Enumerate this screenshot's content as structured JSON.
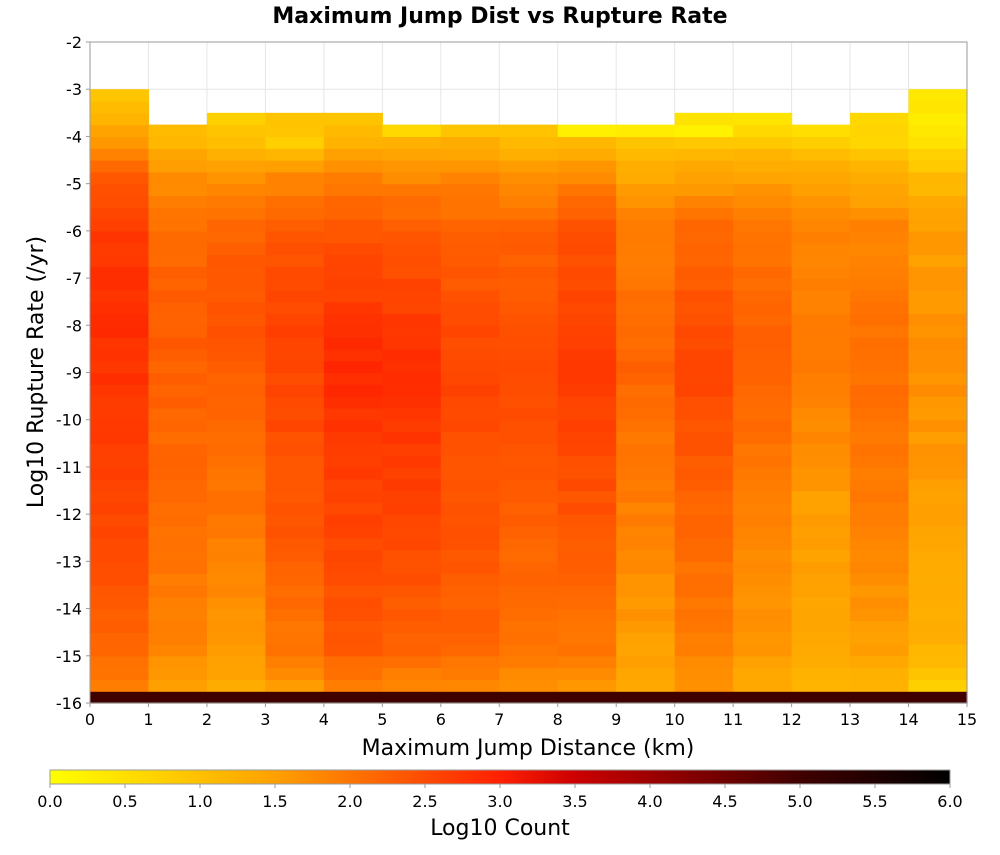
{
  "chart_data": {
    "type": "heatmap",
    "title": "Maximum Jump Dist vs Rupture Rate",
    "xlabel": "Maximum Jump Distance (km)",
    "ylabel": "Log10 Rupture Rate (/yr)",
    "xlim": [
      0,
      15
    ],
    "ylim": [
      -16,
      -2
    ],
    "x_ticks": [
      "0",
      "1",
      "2",
      "3",
      "4",
      "5",
      "6",
      "7",
      "8",
      "9",
      "10",
      "11",
      "12",
      "13",
      "14",
      "15"
    ],
    "y_ticks": [
      "-2",
      "-3",
      "-4",
      "-5",
      "-6",
      "-7",
      "-8",
      "-9",
      "-10",
      "-11",
      "-12",
      "-13",
      "-14",
      "-15",
      "-16"
    ],
    "grid": true,
    "x_bin_width": 1,
    "y_bin_height": 0.25,
    "y_bins_bottom": -16,
    "colorbar": {
      "label": "Log10 Count",
      "range": [
        0,
        6
      ],
      "ticks": [
        "0.0",
        "0.5",
        "1.0",
        "1.5",
        "2.0",
        "2.5",
        "3.0",
        "3.5",
        "4.0",
        "4.5",
        "5.0",
        "5.5",
        "6.0"
      ],
      "colors": [
        "#ffff00",
        "#ffa000",
        "#ff2000",
        "#cc0000",
        "#400000",
        "#000000"
      ],
      "color_stops": [
        0,
        1.5,
        3.0,
        3.5,
        5.0,
        6.0
      ]
    },
    "column_top_rate": [
      -3.0,
      -3.75,
      -3.5,
      -3.5,
      -3.5,
      -3.75,
      -3.75,
      -3.75,
      -3.75,
      -3.75,
      -3.5,
      -3.5,
      -3.75,
      -3.5,
      -3.0
    ],
    "column_profiles": [
      [
        [
          -16,
          5.0
        ],
        [
          -15.75,
          1.9
        ],
        [
          -15,
          2.2
        ],
        [
          -12,
          2.6
        ],
        [
          -8,
          2.85
        ],
        [
          -6,
          2.7
        ],
        [
          -5,
          2.3
        ],
        [
          -4.25,
          1.6
        ],
        [
          -3.75,
          1.2
        ],
        [
          -3.25,
          1.0
        ],
        [
          -3.0,
          1.0
        ]
      ],
      [
        [
          -16,
          5.0
        ],
        [
          -15.75,
          1.5
        ],
        [
          -15,
          1.8
        ],
        [
          -12,
          2.1
        ],
        [
          -8,
          2.3
        ],
        [
          -6,
          2.1
        ],
        [
          -5,
          1.7
        ],
        [
          -4.25,
          1.2
        ],
        [
          -4.0,
          1.0
        ],
        [
          -3.75,
          1.0
        ]
      ],
      [
        [
          -16,
          5.0
        ],
        [
          -15.75,
          1.3
        ],
        [
          -15,
          1.6
        ],
        [
          -12,
          2.0
        ],
        [
          -8,
          2.4
        ],
        [
          -6,
          2.2
        ],
        [
          -5,
          1.7
        ],
        [
          -4.25,
          1.1
        ],
        [
          -3.75,
          0.7
        ],
        [
          -3.5,
          0.7
        ]
      ],
      [
        [
          -16,
          5.0
        ],
        [
          -15.75,
          1.6
        ],
        [
          -15,
          2.0
        ],
        [
          -12,
          2.4
        ],
        [
          -8,
          2.6
        ],
        [
          -6,
          2.3
        ],
        [
          -5,
          1.8
        ],
        [
          -4.25,
          0.8
        ],
        [
          -3.75,
          0.9
        ],
        [
          -3.5,
          0.9
        ]
      ],
      [
        [
          -16,
          5.0
        ],
        [
          -15.75,
          1.9
        ],
        [
          -15,
          2.3
        ],
        [
          -12,
          2.6
        ],
        [
          -9,
          2.9
        ],
        [
          -6,
          2.4
        ],
        [
          -5,
          1.9
        ],
        [
          -4.25,
          1.2
        ],
        [
          -3.75,
          1.0
        ],
        [
          -3.5,
          1.0
        ]
      ],
      [
        [
          -16,
          5.0
        ],
        [
          -15.75,
          1.8
        ],
        [
          -15,
          2.2
        ],
        [
          -12,
          2.6
        ],
        [
          -9,
          2.85
        ],
        [
          -6,
          2.3
        ],
        [
          -5,
          1.8
        ],
        [
          -4.25,
          1.3
        ],
        [
          -4.0,
          0.6
        ],
        [
          -3.75,
          0.6
        ]
      ],
      [
        [
          -16,
          5.0
        ],
        [
          -15.75,
          1.8
        ],
        [
          -15,
          2.2
        ],
        [
          -12,
          2.4
        ],
        [
          -9,
          2.6
        ],
        [
          -6,
          2.2
        ],
        [
          -5,
          1.8
        ],
        [
          -4.25,
          1.3
        ],
        [
          -4.0,
          0.9
        ],
        [
          -3.75,
          0.9
        ]
      ],
      [
        [
          -16,
          5.0
        ],
        [
          -15.75,
          1.7
        ],
        [
          -15,
          2.0
        ],
        [
          -12,
          2.3
        ],
        [
          -9,
          2.5
        ],
        [
          -6,
          2.2
        ],
        [
          -5,
          1.7
        ],
        [
          -4.25,
          1.1
        ],
        [
          -4.0,
          0.9
        ],
        [
          -3.75,
          0.9
        ]
      ],
      [
        [
          -16,
          5.0
        ],
        [
          -15.75,
          1.6
        ],
        [
          -15,
          2.0
        ],
        [
          -12,
          2.4
        ],
        [
          -9,
          2.7
        ],
        [
          -6,
          2.4
        ],
        [
          -5,
          1.8
        ],
        [
          -4.25,
          1.2
        ],
        [
          -4.0,
          0.3
        ],
        [
          -3.75,
          0.3
        ]
      ],
      [
        [
          -16,
          5.0
        ],
        [
          -15.75,
          1.3
        ],
        [
          -15,
          1.5
        ],
        [
          -12,
          1.9
        ],
        [
          -9,
          2.2
        ],
        [
          -6,
          1.9
        ],
        [
          -5,
          1.4
        ],
        [
          -4.25,
          1.0
        ],
        [
          -4.0,
          0.3
        ],
        [
          -3.75,
          0.3
        ]
      ],
      [
        [
          -16,
          5.0
        ],
        [
          -15.75,
          1.6
        ],
        [
          -15,
          1.9
        ],
        [
          -12,
          2.2
        ],
        [
          -9,
          2.6
        ],
        [
          -6,
          2.1
        ],
        [
          -5,
          1.5
        ],
        [
          -4.25,
          0.9
        ],
        [
          -4.0,
          0.2
        ],
        [
          -3.5,
          0.6
        ]
      ],
      [
        [
          -16,
          5.0
        ],
        [
          -15.75,
          1.3
        ],
        [
          -15,
          1.6
        ],
        [
          -12,
          1.9
        ],
        [
          -9,
          2.3
        ],
        [
          -6,
          2.0
        ],
        [
          -5,
          1.5
        ],
        [
          -4.25,
          0.9
        ],
        [
          -3.75,
          0.4
        ],
        [
          -3.5,
          0.4
        ]
      ],
      [
        [
          -16,
          5.0
        ],
        [
          -15.75,
          1.1
        ],
        [
          -15,
          1.4
        ],
        [
          -12,
          1.5
        ],
        [
          -9,
          2.0
        ],
        [
          -6,
          1.8
        ],
        [
          -5,
          1.4
        ],
        [
          -4.25,
          0.8
        ],
        [
          -4.0,
          0.6
        ],
        [
          -3.75,
          0.6
        ]
      ],
      [
        [
          -16,
          5.0
        ],
        [
          -15.75,
          1.2
        ],
        [
          -15,
          1.5
        ],
        [
          -12,
          1.9
        ],
        [
          -9,
          2.1
        ],
        [
          -6,
          1.8
        ],
        [
          -5,
          1.3
        ],
        [
          -4.25,
          0.7
        ],
        [
          -3.75,
          0.6
        ],
        [
          -3.5,
          0.6
        ]
      ],
      [
        [
          -16,
          5.0
        ],
        [
          -15.75,
          0.8
        ],
        [
          -15,
          1.2
        ],
        [
          -12,
          1.5
        ],
        [
          -9,
          1.7
        ],
        [
          -6,
          1.5
        ],
        [
          -5,
          1.1
        ],
        [
          -4.25,
          0.5
        ],
        [
          -4.0,
          0.3
        ],
        [
          -3.75,
          0.3
        ],
        [
          -3.25,
          0.4
        ],
        [
          -3.0,
          0.4
        ]
      ]
    ]
  }
}
